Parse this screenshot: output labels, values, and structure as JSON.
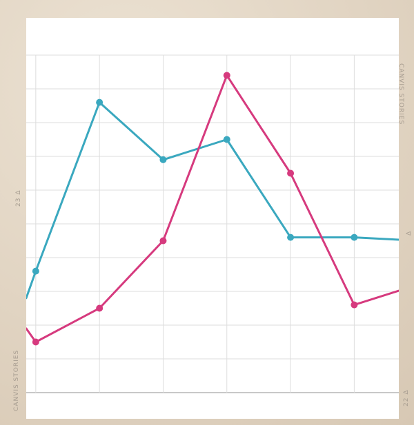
{
  "chart_data": {
    "type": "line",
    "x": [
      0,
      1,
      2,
      3,
      4,
      5,
      6
    ],
    "x_display_range": [
      -0.15,
      5.7
    ],
    "ylim": [
      0,
      10
    ],
    "grid": true,
    "series": [
      {
        "color": "#3aa8bf",
        "values": [
          3.6,
          8.6,
          6.9,
          7.5,
          4.6,
          4.6,
          4.5
        ]
      },
      {
        "color": "#d63a7e",
        "values": [
          1.5,
          2.5,
          4.5,
          9.4,
          6.5,
          2.6,
          3.2
        ]
      }
    ]
  },
  "side_text": {
    "left_brand": "CANVIS STORIES",
    "left_label": "23 Δ",
    "right_brand": "CANVIS STORIES",
    "right_label": "22 Δ",
    "right_mark": "Δ"
  },
  "colors": {
    "panel": "#ffffff",
    "grid": "#dddddd",
    "axis": "#c8c8c8"
  }
}
